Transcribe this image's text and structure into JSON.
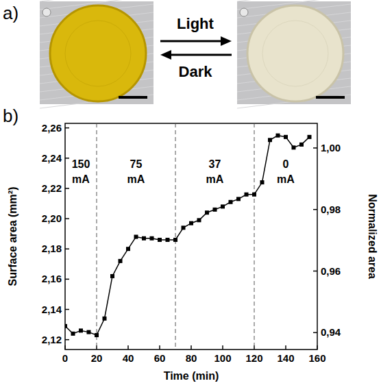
{
  "panel_a": {
    "letter": "a)",
    "top_arrow": "Light",
    "bottom_arrow": "Dark"
  },
  "panel_b": {
    "letter": "b)"
  },
  "chart_data": {
    "type": "line",
    "x_label": "Time (min)",
    "y_label": "Surface area (mm²)",
    "y2_label": "Normalized area",
    "x": [
      0,
      5,
      10,
      15,
      20,
      25,
      30,
      35,
      40,
      45,
      50,
      55,
      60,
      65,
      70,
      75,
      80,
      85,
      90,
      95,
      100,
      105,
      110,
      115,
      120,
      125,
      130,
      135,
      140,
      145,
      150,
      155
    ],
    "series": [
      {
        "color": "#000000",
        "marker": "square",
        "line_style": "solid",
        "values": [
          2.129,
          2.124,
          2.126,
          2.125,
          2.123,
          2.134,
          2.162,
          2.172,
          2.18,
          2.188,
          2.187,
          2.187,
          2.186,
          2.186,
          2.186,
          2.194,
          2.197,
          2.199,
          2.204,
          2.206,
          2.208,
          2.211,
          2.213,
          2.216,
          2.216,
          2.224,
          2.252,
          2.255,
          2.254,
          2.247,
          2.249,
          2.254
        ]
      }
    ],
    "xlim": [
      0,
      160
    ],
    "xticks": [
      0,
      20,
      40,
      60,
      80,
      100,
      120,
      140,
      160
    ],
    "ylim": [
      2.1135,
      2.263
    ],
    "yticks": [
      {
        "value": 2.12,
        "label": "2,12"
      },
      {
        "value": 2.14,
        "label": "2,14"
      },
      {
        "value": 2.16,
        "label": "2,16"
      },
      {
        "value": 2.18,
        "label": "2,18"
      },
      {
        "value": 2.2,
        "label": "2,20"
      },
      {
        "value": 2.22,
        "label": "2,22"
      },
      {
        "value": 2.24,
        "label": "2,24"
      },
      {
        "value": 2.26,
        "label": "2,26"
      }
    ],
    "y2lim": [
      0.9345,
      1.008
    ],
    "y2ticks": [
      {
        "value": 0.94,
        "label": "0,94"
      },
      {
        "value": 0.96,
        "label": "0,96"
      },
      {
        "value": 0.98,
        "label": "0,98"
      },
      {
        "value": 1.0,
        "label": "1,00"
      }
    ],
    "dividers": [
      20,
      70,
      120
    ],
    "annotations": [
      "150 mA",
      "75 mA",
      "37 mA",
      "0 mA"
    ],
    "grid": false
  }
}
